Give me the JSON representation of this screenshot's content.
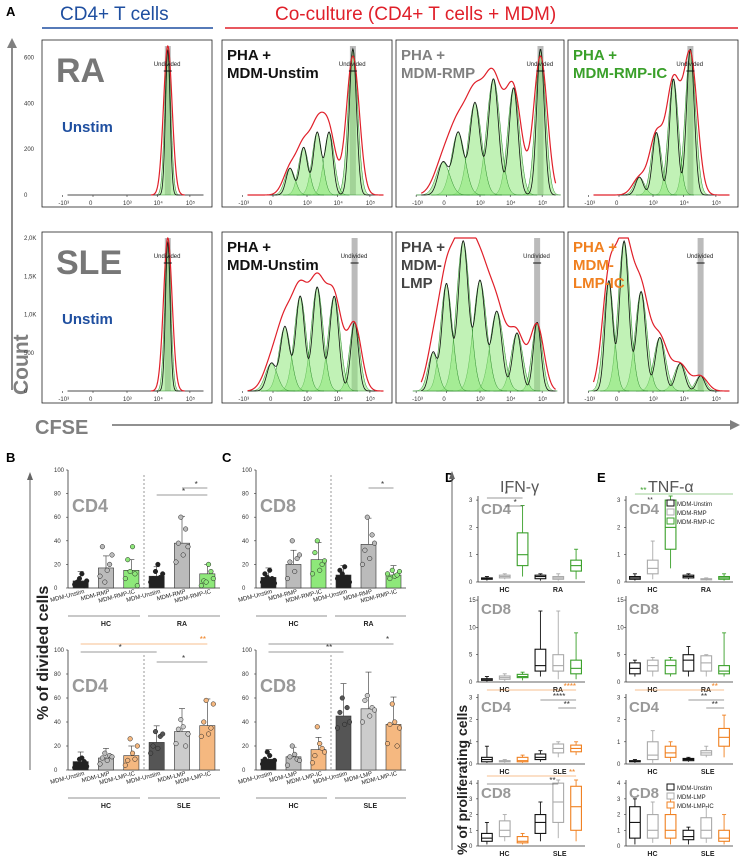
{
  "panel_labels": {
    "A": "A",
    "B": "B",
    "C": "C",
    "D": "D",
    "E": "E"
  },
  "section_headers": {
    "left": "CD4+ T cells",
    "right": "Co-culture (CD4+ T cells + MDM)"
  },
  "colors": {
    "blue": "#1f4fa0",
    "red": "#e0202a",
    "green": "#3aa02a",
    "orange": "#f08020",
    "gray": "#808080",
    "lightgreen": "#8ee87a",
    "darkgray": "#555555",
    "lightgray": "#cccccc"
  },
  "panelA": {
    "axis_y": "Count",
    "axis_x": "CFSE",
    "x_ticks": [
      "-10³",
      "0",
      "10³",
      "10⁴",
      "10⁵"
    ],
    "row1_y_ticks": [
      "0",
      "200",
      "400",
      "600"
    ],
    "row2_y_ticks": [
      "0",
      "500",
      "1,0K",
      "1,5K",
      "2,0K"
    ],
    "undivided": "Undivided",
    "rows": [
      {
        "group": "RA",
        "panels": [
          {
            "title": "Unstim",
            "peak_label": "0"
          },
          {
            "title": "PHA + MDM-Unstim",
            "peak_labels": [
              "0",
              "1",
              "2",
              "3"
            ]
          },
          {
            "title": "PHA + MDM-RMP",
            "peak_labels": [
              "0",
              "1",
              "2",
              "3",
              "4"
            ]
          },
          {
            "title": "PHA + MDM-RMP-IC",
            "peak_labels": [
              "0",
              "1",
              "2"
            ]
          }
        ]
      },
      {
        "group": "SLE",
        "panels": [
          {
            "title": "Unstim",
            "peak_label": "0"
          },
          {
            "title": "PHA + MDM-Unstim",
            "peak_labels": [
              "1",
              "2",
              "3",
              "4",
              "5"
            ]
          },
          {
            "title": "PHA + MDM-LMP",
            "peak_labels": [
              "1",
              "2",
              "3",
              "4",
              "5"
            ]
          },
          {
            "title": "PHA + MDM-LMP-IC",
            "peak_labels": [
              "2",
              "3",
              "4",
              "5",
              "6"
            ]
          }
        ]
      }
    ]
  },
  "panelBC": {
    "y_axis_label": "% of divided cells",
    "y_ticks": [
      "0",
      "20",
      "40",
      "60",
      "80",
      "100"
    ],
    "top_cats": [
      "MDM-Unstim",
      "MDM-RMP",
      "MDM-RMP-IC",
      "MDM-Unstim",
      "MDM-RMP",
      "MDM-RMP-IC"
    ],
    "top_groups": [
      "HC",
      "RA"
    ],
    "bottom_cats": [
      "MDM-Unstim",
      "MDM-LMP",
      "MDM-LMP-IC",
      "MDM-Unstim",
      "MDM-LMP",
      "MDM-LMP-IC"
    ],
    "bottom_groups": [
      "HC",
      "SLE"
    ],
    "stars": {
      "one": "*",
      "two": "**"
    }
  },
  "panelDE": {
    "y_axis_label": "% of proliferating cells",
    "D_title": "IFN-γ",
    "E_title": "TNF-α",
    "legend_top": [
      "MDM-Unstim",
      "MDM-RMP",
      "MDM-RMP-IC"
    ],
    "legend_bottom": [
      "MDM-Unstim",
      "MDM-LMP",
      "MDM-LMP-IC"
    ],
    "groups_top": [
      "HC",
      "RA"
    ],
    "groups_bottom": [
      "HC",
      "SLE"
    ],
    "y_ticks_top": [
      "0",
      "1",
      "2",
      "3"
    ],
    "y_ticks_mid": [
      "0",
      "5",
      "10",
      "15"
    ],
    "y_ticks_bot": [
      "0",
      "1",
      "2",
      "3",
      "4"
    ],
    "stars": {
      "one": "*",
      "two": "**",
      "four": "****"
    }
  },
  "chart_data": [
    {
      "type": "bar",
      "title": "B - CD4 (HC vs RA)",
      "ylabel": "% of divided cells",
      "ylim": [
        0,
        100
      ],
      "categories": [
        "MDM-Unstim",
        "MDM-RMP",
        "MDM-RMP-IC",
        "MDM-Unstim",
        "MDM-RMP",
        "MDM-RMP-IC"
      ],
      "groups": [
        "HC",
        "HC",
        "HC",
        "RA",
        "RA",
        "RA"
      ],
      "values": [
        6,
        17,
        15,
        10,
        38,
        12
      ],
      "annotation_labels": [
        "CD4"
      ]
    },
    {
      "type": "bar",
      "title": "C - CD8 (HC vs RA)",
      "ylabel": "% of divided cells",
      "ylim": [
        0,
        100
      ],
      "categories": [
        "MDM-Unstim",
        "MDM-RMP",
        "MDM-RMP-IC",
        "MDM-Unstim",
        "MDM-RMP",
        "MDM-RMP-IC"
      ],
      "groups": [
        "HC",
        "HC",
        "HC",
        "RA",
        "RA",
        "RA"
      ],
      "values": [
        9,
        20,
        24,
        11,
        37,
        11
      ],
      "annotation_labels": [
        "CD8"
      ]
    },
    {
      "type": "bar",
      "title": "B - CD4 (HC vs SLE)",
      "ylabel": "% of divided cells",
      "ylim": [
        0,
        100
      ],
      "categories": [
        "MDM-Unstim",
        "MDM-LMP",
        "MDM-LMP-IC",
        "MDM-Unstim",
        "MDM-LMP",
        "MDM-LMP-IC"
      ],
      "groups": [
        "HC",
        "HC",
        "HC",
        "SLE",
        "SLE",
        "SLE"
      ],
      "values": [
        7,
        10,
        12,
        23,
        32,
        37
      ],
      "annotation_labels": [
        "CD4"
      ]
    },
    {
      "type": "bar",
      "title": "C - CD8 (HC vs SLE)",
      "ylabel": "% of divided cells",
      "ylim": [
        0,
        100
      ],
      "categories": [
        "MDM-Unstim",
        "MDM-LMP",
        "MDM-LMP-IC",
        "MDM-Unstim",
        "MDM-LMP",
        "MDM-LMP-IC"
      ],
      "groups": [
        "HC",
        "HC",
        "HC",
        "SLE",
        "SLE",
        "SLE"
      ],
      "values": [
        9,
        11,
        17,
        45,
        51,
        38
      ],
      "annotation_labels": [
        "CD8"
      ]
    }
  ]
}
